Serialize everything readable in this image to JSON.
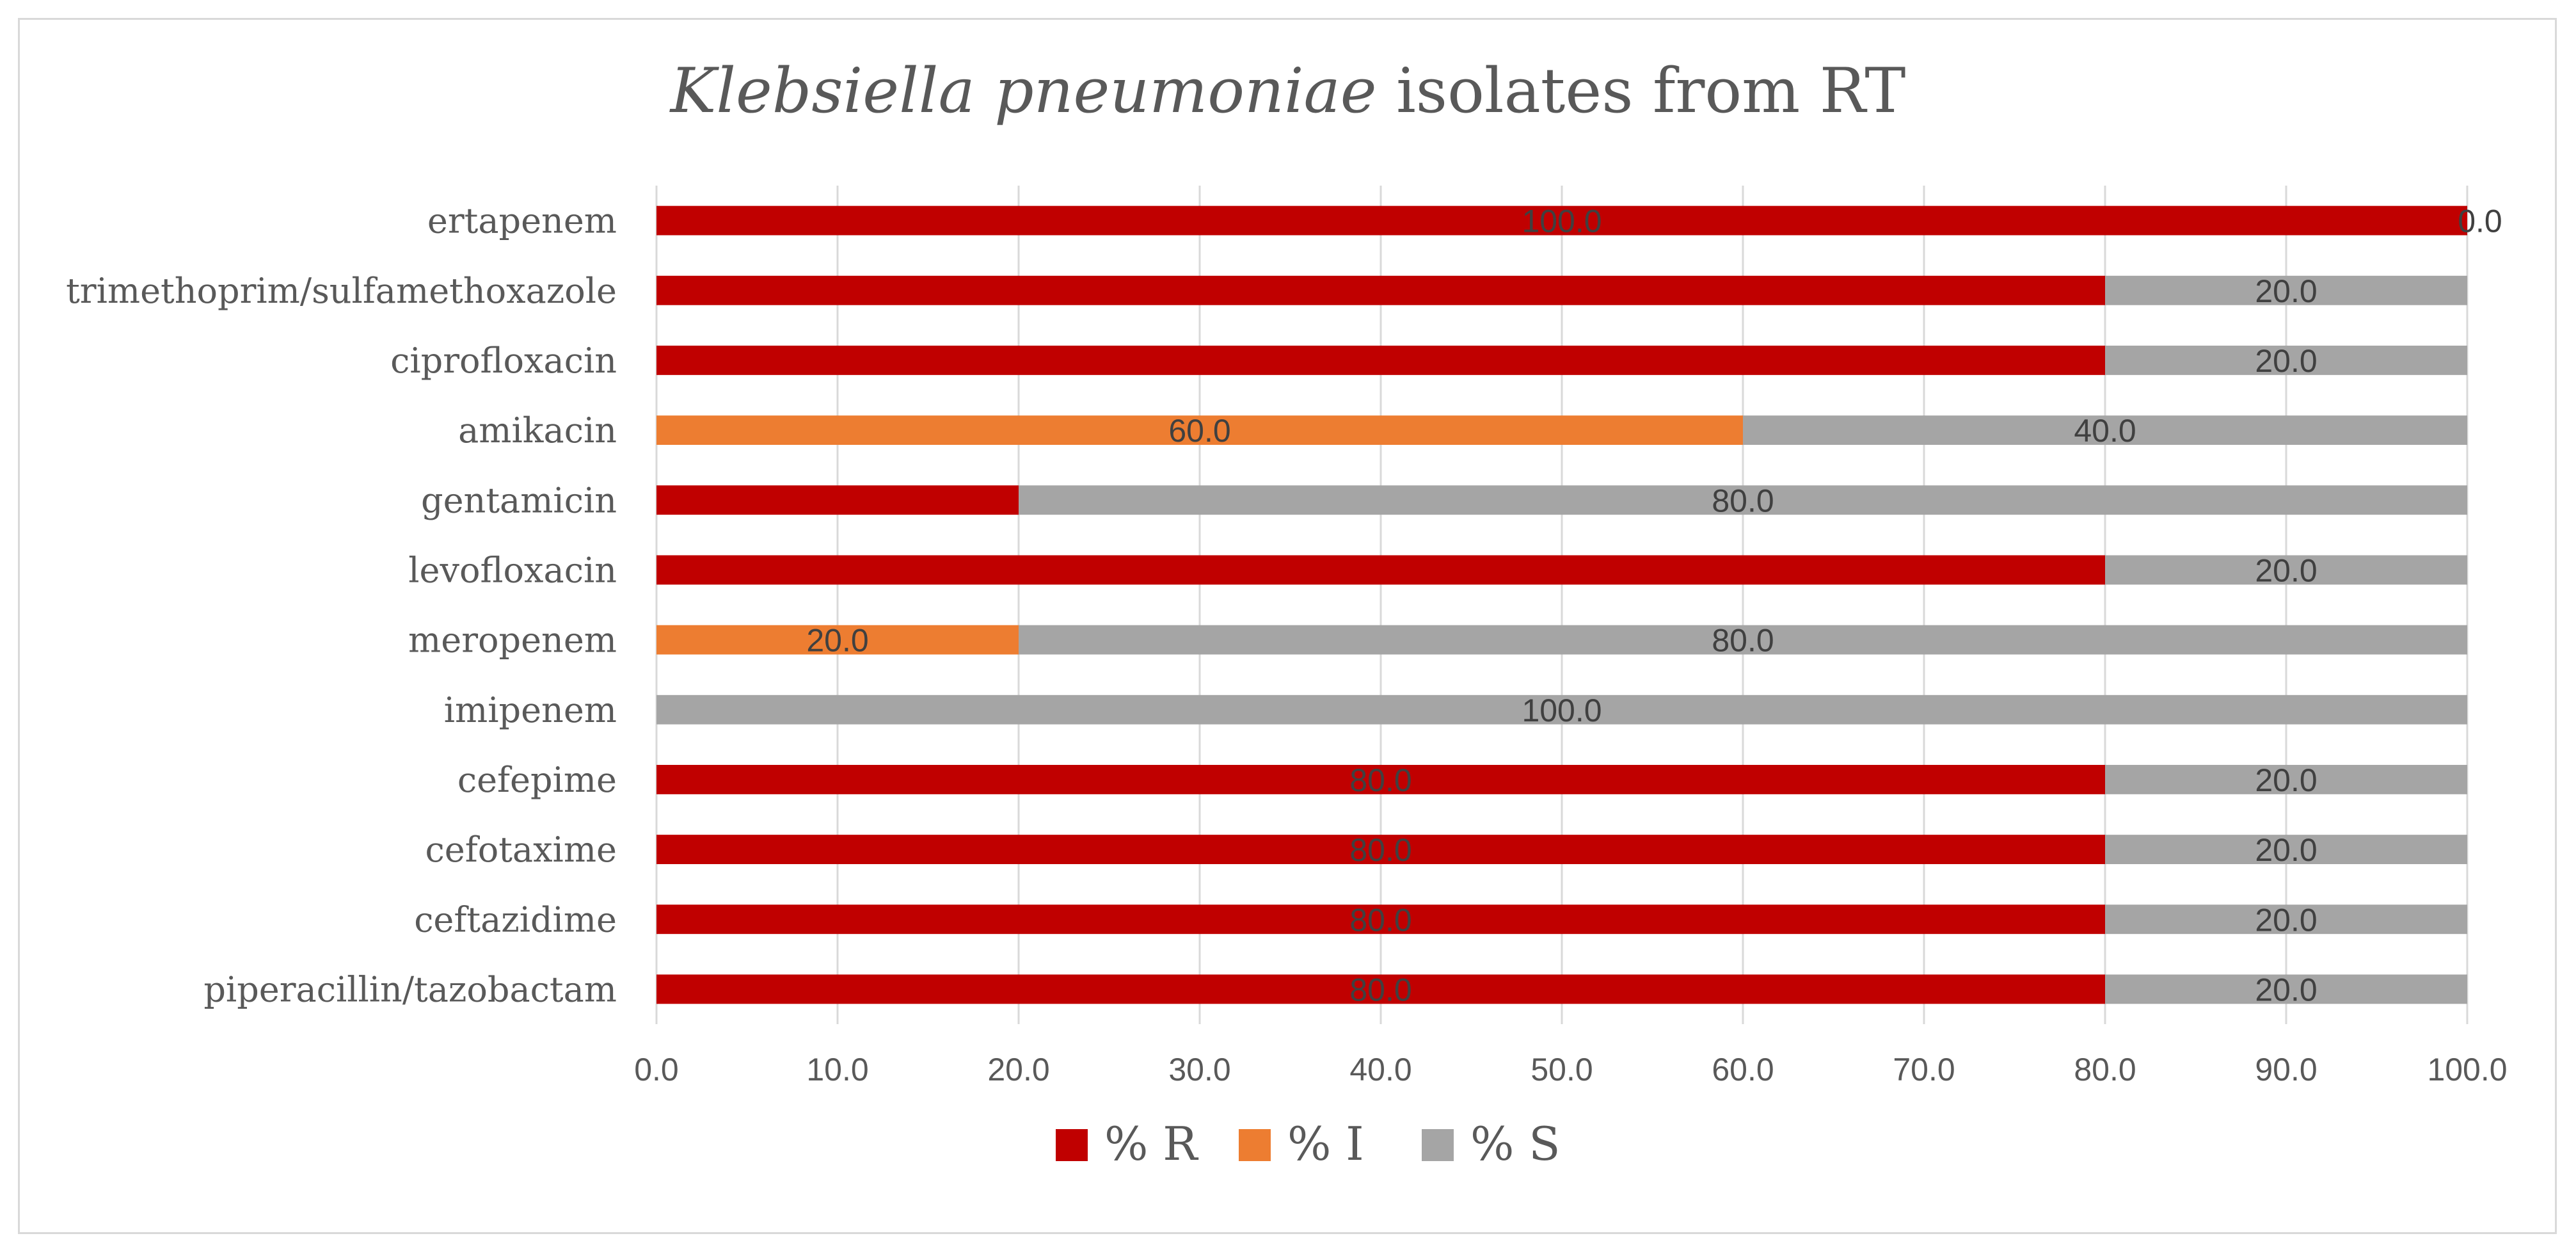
{
  "chart_data": {
    "type": "bar",
    "orientation": "horizontal",
    "stacked": true,
    "title_italic": "Klebsiella pneumoniae",
    "title_rest": " isolates from RT",
    "title": "Klebsiella pneumoniae isolates from RT",
    "categories": [
      "ertapenem",
      "trimethoprim/sulfamethoxazole",
      "ciprofloxacin",
      "amikacin",
      "gentamicin",
      "levofloxacin",
      "meropenem",
      "imipenem",
      "cefepime",
      "cefotaxime",
      "ceftazidime",
      "piperacillin/tazobactam"
    ],
    "series": [
      {
        "name": "% R",
        "color": "#c00000",
        "values": [
          100.0,
          80.0,
          80.0,
          0.0,
          20.0,
          80.0,
          0.0,
          0.0,
          80.0,
          80.0,
          80.0,
          80.0
        ],
        "labels": [
          "100.0",
          "",
          "",
          "",
          "",
          "",
          "",
          "",
          "80.0",
          "80.0",
          "80.0",
          "80.0"
        ]
      },
      {
        "name": "% I",
        "color": "#ed7d31",
        "values": [
          0.0,
          0.0,
          0.0,
          60.0,
          0.0,
          0.0,
          20.0,
          0.0,
          0.0,
          0.0,
          0.0,
          0.0
        ],
        "labels": [
          "",
          "",
          "",
          "60.0",
          "",
          "",
          "20.0",
          "",
          "",
          "",
          "",
          ""
        ]
      },
      {
        "name": "% S",
        "color": "#a5a5a5",
        "values": [
          0.0,
          20.0,
          20.0,
          40.0,
          80.0,
          20.0,
          80.0,
          100.0,
          20.0,
          20.0,
          20.0,
          20.0
        ],
        "labels": [
          "0.0",
          "20.0",
          "20.0",
          "40.0",
          "80.0",
          "20.0",
          "80.0",
          "100.0",
          "20.0",
          "20.0",
          "20.0",
          "20.0"
        ]
      }
    ],
    "xlim": [
      0,
      100
    ],
    "xticks": [
      "0.0",
      "10.0",
      "20.0",
      "30.0",
      "40.0",
      "50.0",
      "60.0",
      "70.0",
      "80.0",
      "90.0",
      "100.0"
    ],
    "xlabel": "",
    "ylabel": "",
    "grid": true,
    "legend_position": "bottom"
  }
}
